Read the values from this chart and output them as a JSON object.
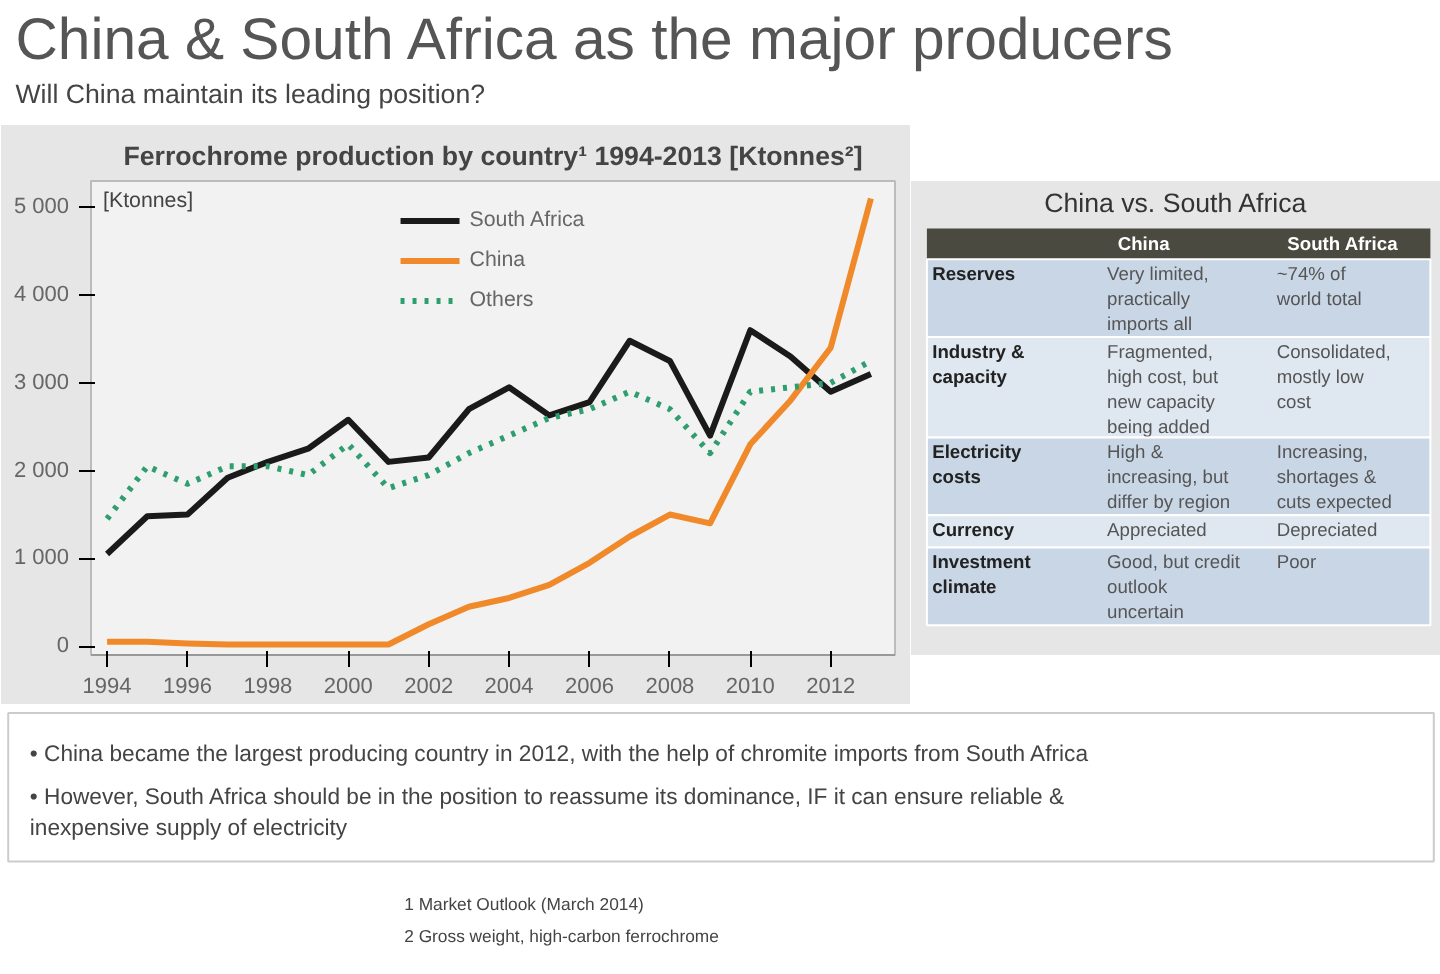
{
  "chart_data": [
    {
      "type": "other",
      "title": "China & South Africa as the major producers",
      "subtitle": "Will China maintain its leading position?"
    },
    {
      "type": "line",
      "title": "Ferrochrome production by country¹ 1994-2013 [Ktonnes²]",
      "ylabel": "[Ktonnes]",
      "x": [
        1994,
        1995,
        1996,
        1997,
        1998,
        1999,
        2000,
        2001,
        2002,
        2003,
        2004,
        2005,
        2006,
        2007,
        2008,
        2009,
        2010,
        2011,
        2012,
        2013
      ],
      "series": [
        {
          "name": "South Africa",
          "color": "#1a1a1a",
          "line_style": "solid",
          "values": [
            1050,
            1480,
            1500,
            1920,
            2100,
            2250,
            2580,
            2100,
            2150,
            2700,
            2950,
            2630,
            2780,
            3480,
            3250,
            2400,
            3600,
            3300,
            2900,
            3100
          ]
        },
        {
          "name": "China",
          "color": "#f0892a",
          "line_style": "solid",
          "values": [
            50,
            50,
            30,
            20,
            20,
            20,
            20,
            20,
            250,
            450,
            550,
            700,
            950,
            1250,
            1500,
            1400,
            2300,
            2800,
            3400,
            5100
          ]
        },
        {
          "name": "Others",
          "color": "#2e9e6e",
          "line_style": "dotted",
          "values": [
            1450,
            2050,
            1850,
            2050,
            2050,
            1950,
            2300,
            1800,
            1950,
            2200,
            2400,
            2600,
            2700,
            2900,
            2700,
            2200,
            2900,
            2950,
            3000,
            3250
          ]
        }
      ],
      "xlim": [
        1993.6,
        2013.6
      ],
      "xticks": [
        1994,
        1996,
        1998,
        2000,
        2002,
        2004,
        2006,
        2008,
        2010,
        2012
      ],
      "ylim": [
        -100,
        5300
      ],
      "yticks": [
        {
          "value": 0,
          "label": "0"
        },
        {
          "value": 1000,
          "label": "1 000"
        },
        {
          "value": 2000,
          "label": "2 000"
        },
        {
          "value": 3000,
          "label": "3 000"
        },
        {
          "value": 4000,
          "label": "4 000"
        },
        {
          "value": 5000,
          "label": "5 000"
        }
      ],
      "grid": false,
      "legend": "top center"
    },
    {
      "type": "other",
      "title": "China vs. South Africa",
      "categories": [
        null,
        "China",
        "South Africa"
      ],
      "annotations": [
        "Reserves",
        "Very limited,\npractically\nimports all",
        "~74% of\nworld total",
        "Industry &\ncapacity",
        "Fragmented,\nhigh cost, but\nnew capacity\nbeing added",
        "Consolidated,\nmostly low\ncost",
        "Electricity\ncosts",
        "High &\nincreasing, but\ndiffer by region",
        "Increasing,\nshortages &\ncuts expected",
        "Currency",
        "Appreciated",
        "Depreciated",
        "Investment\nclimate",
        "Good, but credit\noutlook\nuncertain",
        "Poor"
      ]
    },
    {
      "type": "other",
      "annotations": [
        "• China became the largest producing country in 2012, with the help of chromite imports from South Africa",
        "• However, South Africa should be in the position to reassume its dominance, IF it can ensure reliable &\n   inexpensive supply of electricity",
        "1 Market Outlook (March 2014)",
        "2 Gross weight, high-carbon ferrochrome"
      ]
    }
  ]
}
